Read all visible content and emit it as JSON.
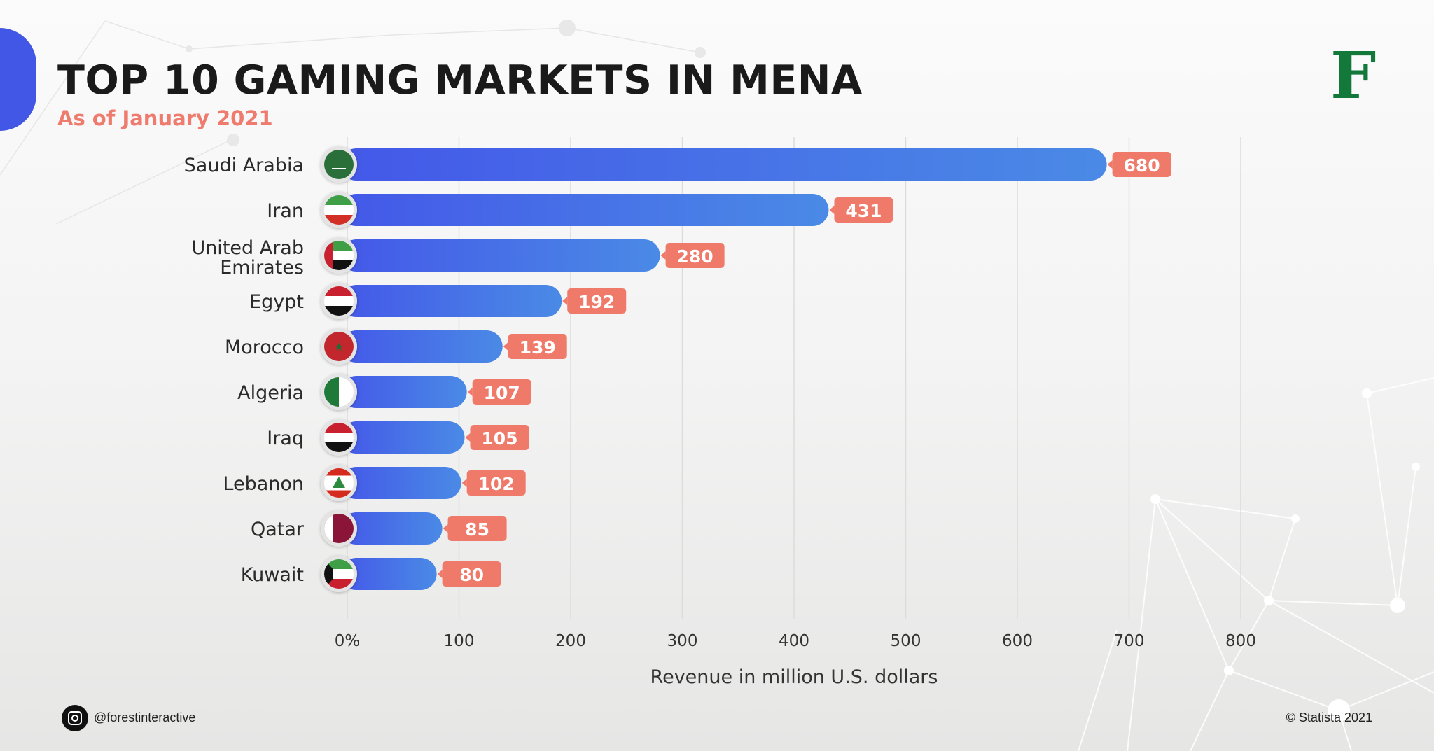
{
  "header": {
    "title": "TOP 10 GAMING MARKETS IN MENA",
    "subtitle": "As of January 2021",
    "logo_letter": "F"
  },
  "footer": {
    "instagram_handle": "@forestinteractive",
    "credit": "© Statista 2021"
  },
  "colors": {
    "bar_start": "#4458e8",
    "bar_end": "#4a8ae6",
    "label_bg": "#f07a6a",
    "accent_blob": "#4357e6",
    "logo": "#12793a"
  },
  "chart_data": {
    "type": "bar",
    "orientation": "horizontal",
    "title": "TOP 10 GAMING MARKETS IN MENA",
    "subtitle": "As of January 2021",
    "categories": [
      "Saudi Arabia",
      "Iran",
      "United Arab Emirates",
      "Egypt",
      "Morocco",
      "Algeria",
      "Iraq",
      "Lebanon",
      "Qatar",
      "Kuwait"
    ],
    "values": [
      680,
      431,
      280,
      192,
      139,
      107,
      105,
      102,
      85,
      80
    ],
    "value_labels": [
      "680",
      "431",
      "280",
      "192",
      "139",
      "107",
      "105",
      "102",
      "85",
      "80"
    ],
    "flags": [
      "saudi-arabia",
      "iran",
      "uae",
      "egypt",
      "morocco",
      "algeria",
      "iraq",
      "lebanon",
      "qatar",
      "kuwait"
    ],
    "xlabel": "Revenue in million U.S. dollars",
    "xlim": [
      0,
      800
    ],
    "xticks": [
      0,
      100,
      200,
      300,
      400,
      500,
      600,
      700,
      800
    ],
    "xtick_labels": [
      "0%",
      "100",
      "200",
      "300",
      "400",
      "500",
      "600",
      "700",
      "800"
    ],
    "grid": true
  }
}
